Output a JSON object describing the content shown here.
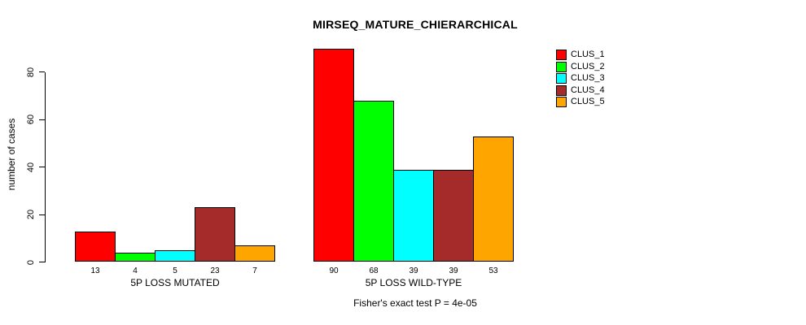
{
  "chart_data": {
    "type": "bar",
    "title": "MIRSEQ_MATURE_CHIERARCHICAL",
    "ylabel": "number of cases",
    "xlabel": "",
    "ylim": [
      0,
      90
    ],
    "yticks": [
      0,
      20,
      40,
      60,
      80
    ],
    "grid": false,
    "legend_position": "right-outside-top",
    "series": [
      "CLUS_1",
      "CLUS_2",
      "CLUS_3",
      "CLUS_4",
      "CLUS_5"
    ],
    "series_colors": [
      "#FF0000",
      "#00FF00",
      "#00FFFF",
      "#A52A2A",
      "#FFA500"
    ],
    "groups": [
      {
        "label": "5P LOSS MUTATED",
        "values": [
          13,
          4,
          5,
          23,
          7
        ]
      },
      {
        "label": "5P LOSS WILD-TYPE",
        "values": [
          90,
          68,
          39,
          39,
          53
        ]
      }
    ],
    "bar_value_labels_shown": true,
    "annotation": "Fisher's exact test P = 4e-05",
    "axis_color": "#000000",
    "bar_border_color": "#000000",
    "background": "#FFFFFF"
  }
}
